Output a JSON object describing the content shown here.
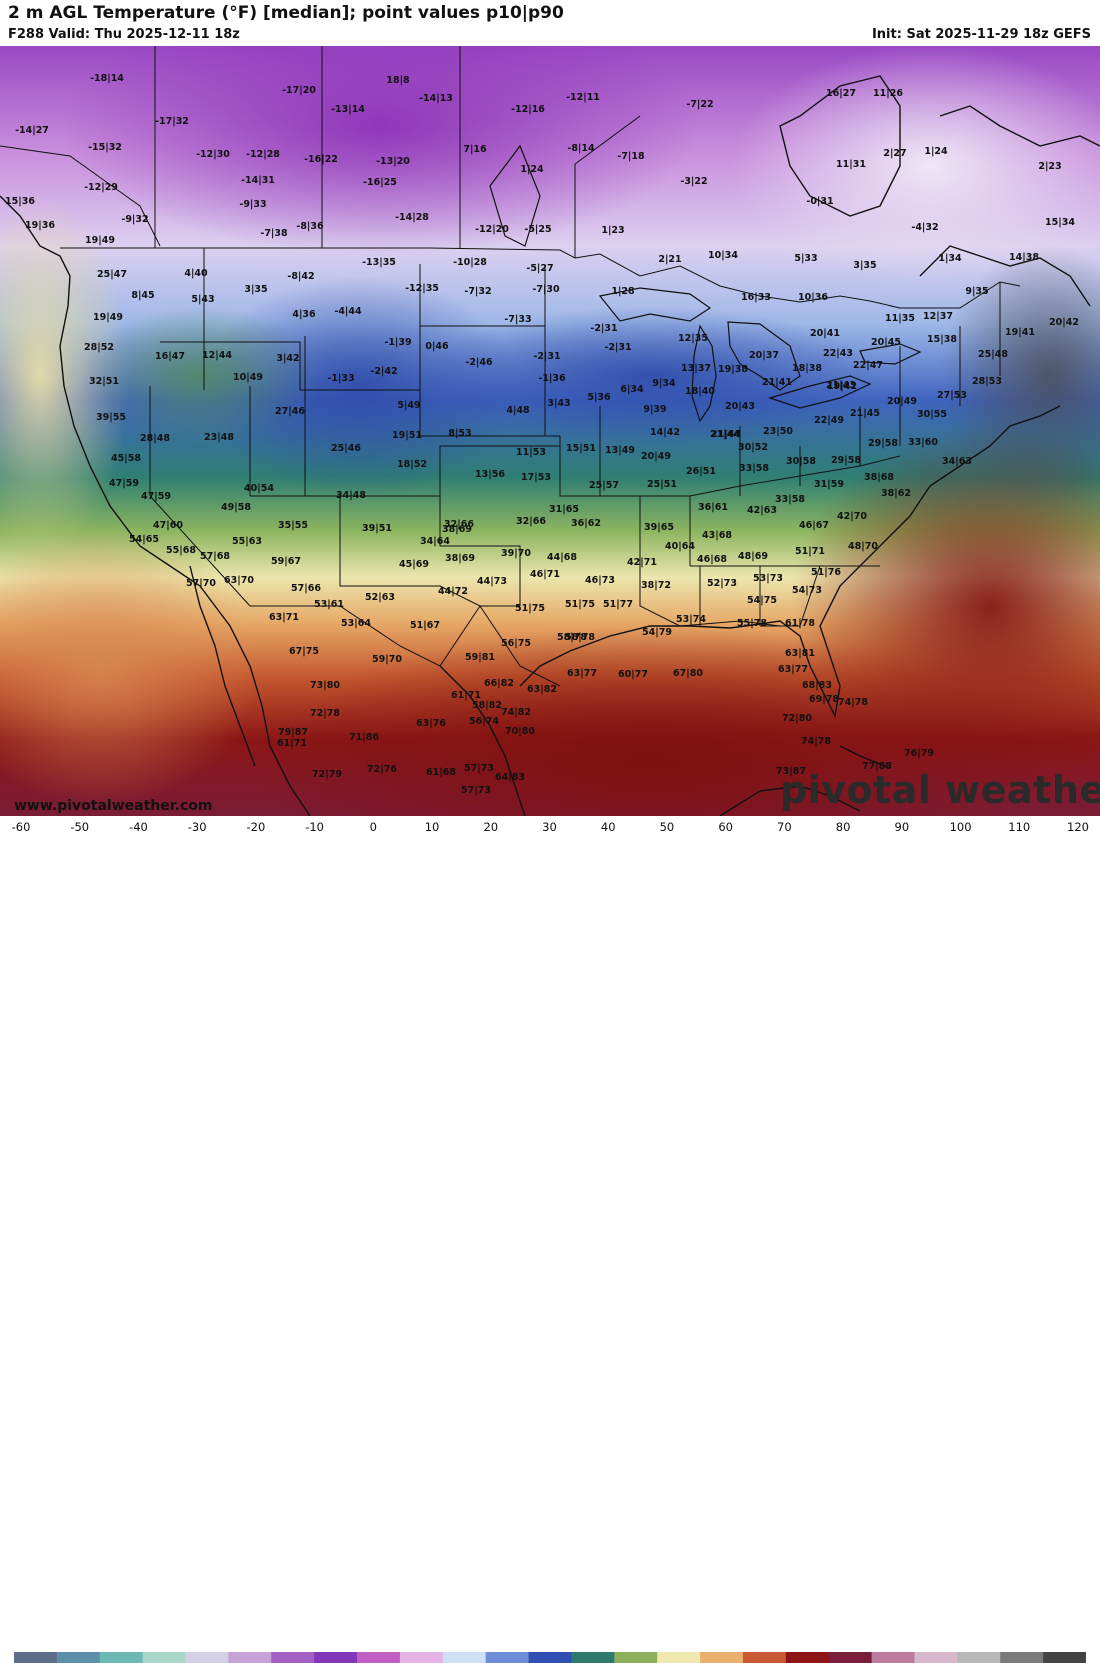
{
  "header": {
    "title": "2 m AGL Temperature (°F) [median]; point values p10|p90",
    "valid": "F288 Valid: Thu 2025-12-11 18z",
    "init": "Init: Sat 2025-11-29 18z GEFS"
  },
  "footer": {
    "website": "www.pivotalweather.com",
    "brand": "pivotal weather"
  },
  "legend": {
    "unit": "°F",
    "ticks": [
      "-60",
      "-50",
      "-40",
      "-30",
      "-20",
      "-10",
      "0",
      "10",
      "20",
      "30",
      "40",
      "50",
      "60",
      "70",
      "80",
      "90",
      "100",
      "110",
      "120"
    ],
    "colors": [
      "#5e6e8a",
      "#5d8fa8",
      "#6cb8b5",
      "#a9d6c8",
      "#d5d0e6",
      "#c7a2d6",
      "#a25fc4",
      "#8236b8",
      "#c25fc4",
      "#e4b4e6",
      "#cfe0f4",
      "#6e8fd8",
      "#2f4fb2",
      "#2e7a6c",
      "#8cb05c",
      "#efe8b0",
      "#eab070",
      "#c85a34",
      "#8c1414",
      "#7a1e3a",
      "#bc7ca0",
      "#d8b8cc",
      "#b8b8b8",
      "#7a7a7a",
      "#444444"
    ]
  },
  "points": [
    {
      "t": "-18|14"
    },
    {
      "t": "-17|20"
    },
    {
      "t": "18|8"
    },
    {
      "t": "-14|13"
    },
    {
      "t": "-12|11"
    },
    {
      "t": "-7|22"
    },
    {
      "t": "16|27"
    },
    {
      "t": "11|26"
    },
    {
      "t": "-14|27"
    },
    {
      "t": "-17|32"
    },
    {
      "t": "-13|14"
    },
    {
      "t": "-12|16"
    },
    {
      "t": "-15|32"
    },
    {
      "t": "-12|30"
    },
    {
      "t": "-12|28"
    },
    {
      "t": "-16|22"
    },
    {
      "t": "-13|20"
    },
    {
      "t": "7|16"
    },
    {
      "t": "-8|14"
    },
    {
      "t": "-7|18"
    },
    {
      "t": "2|27"
    },
    {
      "t": "1|24"
    },
    {
      "t": "11|31"
    },
    {
      "t": "2|23"
    },
    {
      "t": "-12|29"
    },
    {
      "t": "-14|31"
    },
    {
      "t": "-16|25"
    },
    {
      "t": "1|24"
    },
    {
      "t": "-3|22"
    },
    {
      "t": "15|36"
    },
    {
      "t": "-9|33"
    },
    {
      "t": "-0|31"
    },
    {
      "t": "-9|32"
    },
    {
      "t": "-14|28"
    },
    {
      "t": "19|36"
    },
    {
      "t": "-7|38"
    },
    {
      "t": "-8|36"
    },
    {
      "t": "-12|20"
    },
    {
      "t": "-5|25"
    },
    {
      "t": "1|23"
    },
    {
      "t": "-4|32"
    },
    {
      "t": "15|34"
    },
    {
      "t": "19|49"
    },
    {
      "t": "-13|35"
    },
    {
      "t": "-10|28"
    },
    {
      "t": "-5|27"
    },
    {
      "t": "2|21"
    },
    {
      "t": "10|34"
    },
    {
      "t": "5|33"
    },
    {
      "t": "3|35"
    },
    {
      "t": "1|34"
    },
    {
      "t": "14|38"
    },
    {
      "t": "25|47"
    },
    {
      "t": "4|40"
    },
    {
      "t": "-8|42"
    },
    {
      "t": "3|35"
    },
    {
      "t": "-12|35"
    },
    {
      "t": "-7|32"
    },
    {
      "t": "-7|30"
    },
    {
      "t": "1|28"
    },
    {
      "t": "16|33"
    },
    {
      "t": "10|36"
    },
    {
      "t": "9|35"
    },
    {
      "t": "8|45"
    },
    {
      "t": "5|43"
    },
    {
      "t": "19|49"
    },
    {
      "t": "4|36"
    },
    {
      "t": "-4|44"
    },
    {
      "t": "-7|33"
    },
    {
      "t": "-2|31"
    },
    {
      "t": "11|35"
    },
    {
      "t": "12|37"
    },
    {
      "t": "20|42"
    },
    {
      "t": "19|41"
    },
    {
      "t": "20|41"
    },
    {
      "t": "12|35"
    },
    {
      "t": "-1|39"
    },
    {
      "t": "0|46"
    },
    {
      "t": "-2|31"
    },
    {
      "t": "28|52"
    },
    {
      "t": "16|47"
    },
    {
      "t": "12|44"
    },
    {
      "t": "3|42"
    },
    {
      "t": "-2|46"
    },
    {
      "t": "-2|31"
    },
    {
      "t": "22|43"
    },
    {
      "t": "20|37"
    },
    {
      "t": "15|38"
    },
    {
      "t": "20|45"
    },
    {
      "t": "25|48"
    },
    {
      "t": "-1|33"
    },
    {
      "t": "-2|42"
    },
    {
      "t": "13|37"
    },
    {
      "t": "19|38"
    },
    {
      "t": "18|38"
    },
    {
      "t": "22|47"
    },
    {
      "t": "10|49"
    },
    {
      "t": "32|51"
    },
    {
      "t": "-1|36"
    },
    {
      "t": "6|34"
    },
    {
      "t": "9|34"
    },
    {
      "t": "21|41"
    },
    {
      "t": "21|43"
    },
    {
      "t": "28|53"
    },
    {
      "t": "18|40"
    },
    {
      "t": "19|42"
    },
    {
      "t": "5|36"
    },
    {
      "t": "27|46"
    },
    {
      "t": "5|49"
    },
    {
      "t": "4|48"
    },
    {
      "t": "3|43"
    },
    {
      "t": "27|53"
    },
    {
      "t": "39|55"
    },
    {
      "t": "20|43"
    },
    {
      "t": "21|44"
    },
    {
      "t": "9|39"
    },
    {
      "t": "21|45"
    },
    {
      "t": "20|49"
    },
    {
      "t": "22|49"
    },
    {
      "t": "30|55"
    },
    {
      "t": "28|48"
    },
    {
      "t": "23|48"
    },
    {
      "t": "19|51"
    },
    {
      "t": "8|53"
    },
    {
      "t": "21|44"
    },
    {
      "t": "23|50"
    },
    {
      "t": "14|42"
    },
    {
      "t": "29|58"
    },
    {
      "t": "33|60"
    },
    {
      "t": "25|46"
    },
    {
      "t": "15|51"
    },
    {
      "t": "45|58"
    },
    {
      "t": "11|53"
    },
    {
      "t": "13|49"
    },
    {
      "t": "20|49"
    },
    {
      "t": "30|52"
    },
    {
      "t": "34|63"
    },
    {
      "t": "18|52"
    },
    {
      "t": "13|56"
    },
    {
      "t": "17|53"
    },
    {
      "t": "26|51"
    },
    {
      "t": "33|58"
    },
    {
      "t": "30|58"
    },
    {
      "t": "29|58"
    },
    {
      "t": "47|59"
    },
    {
      "t": "38|68"
    },
    {
      "t": "40|54"
    },
    {
      "t": "25|57"
    },
    {
      "t": "25|51"
    },
    {
      "t": "31|59"
    },
    {
      "t": "47|59"
    },
    {
      "t": "34|48"
    },
    {
      "t": "33|58"
    },
    {
      "t": "38|62"
    },
    {
      "t": "49|58"
    },
    {
      "t": "31|65"
    },
    {
      "t": "36|61"
    },
    {
      "t": "42|63"
    },
    {
      "t": "35|55"
    },
    {
      "t": "42|70"
    },
    {
      "t": "47|60"
    },
    {
      "t": "32|66"
    },
    {
      "t": "32|66"
    },
    {
      "t": "36|62"
    },
    {
      "t": "39|65"
    },
    {
      "t": "46|67"
    },
    {
      "t": "54|65"
    },
    {
      "t": "55|63"
    },
    {
      "t": "39|51"
    },
    {
      "t": "38|69"
    },
    {
      "t": "43|68"
    },
    {
      "t": "34|64"
    },
    {
      "t": "40|64"
    },
    {
      "t": "48|70"
    },
    {
      "t": "55|68"
    },
    {
      "t": "51|71"
    },
    {
      "t": "57|68"
    },
    {
      "t": "39|70"
    },
    {
      "t": "46|68"
    },
    {
      "t": "48|69"
    },
    {
      "t": "59|67"
    },
    {
      "t": "45|69"
    },
    {
      "t": "38|69"
    },
    {
      "t": "44|68"
    },
    {
      "t": "42|71"
    },
    {
      "t": "51|76"
    },
    {
      "t": "57|70"
    },
    {
      "t": "63|70"
    },
    {
      "t": "46|71"
    },
    {
      "t": "57|66"
    },
    {
      "t": "44|73"
    },
    {
      "t": "46|73"
    },
    {
      "t": "52|73"
    },
    {
      "t": "53|73"
    },
    {
      "t": "38|72"
    },
    {
      "t": "54|73"
    },
    {
      "t": "44|72"
    },
    {
      "t": "52|63"
    },
    {
      "t": "53|61"
    },
    {
      "t": "54|75"
    },
    {
      "t": "51|75"
    },
    {
      "t": "51|75"
    },
    {
      "t": "51|77"
    },
    {
      "t": "63|71"
    },
    {
      "t": "53|64"
    },
    {
      "t": "51|67"
    },
    {
      "t": "53|74"
    },
    {
      "t": "55|78"
    },
    {
      "t": "61|78"
    },
    {
      "t": "58|78"
    },
    {
      "t": "58|78"
    },
    {
      "t": "54|79"
    },
    {
      "t": "67|75"
    },
    {
      "t": "56|75"
    },
    {
      "t": "59|81"
    },
    {
      "t": "63|81"
    },
    {
      "t": "59|70"
    },
    {
      "t": "63|77"
    },
    {
      "t": "60|77"
    },
    {
      "t": "67|80"
    },
    {
      "t": "73|80"
    },
    {
      "t": "66|82"
    },
    {
      "t": "63|82"
    },
    {
      "t": "63|77"
    },
    {
      "t": "68|83"
    },
    {
      "t": "61|71"
    },
    {
      "t": "58|82"
    },
    {
      "t": "69|78"
    },
    {
      "t": "72|78"
    },
    {
      "t": "74|82"
    },
    {
      "t": "63|76"
    },
    {
      "t": "56|74"
    },
    {
      "t": "70|80"
    },
    {
      "t": "72|80"
    },
    {
      "t": "74|78"
    },
    {
      "t": "79|87"
    },
    {
      "t": "71|86"
    },
    {
      "t": "74|78"
    },
    {
      "t": "77|88"
    },
    {
      "t": "61|71"
    },
    {
      "t": "76|79"
    },
    {
      "t": "57|73"
    },
    {
      "t": "72|79"
    },
    {
      "t": "72|76"
    },
    {
      "t": "61|68"
    },
    {
      "t": "64|83"
    },
    {
      "t": "73|87"
    },
    {
      "t": "57|73"
    }
  ]
}
